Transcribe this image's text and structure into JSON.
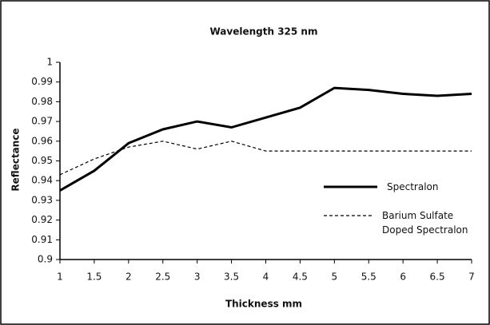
{
  "chart_data": {
    "type": "line",
    "title": "Wavelength 325 nm",
    "x_label": "Thickness mm",
    "y_label": "Reflectance",
    "x": [
      1,
      1.5,
      2,
      2.5,
      3,
      3.5,
      4,
      4.5,
      5,
      5.5,
      6,
      6.5,
      7
    ],
    "series": [
      {
        "name": "Spectralon",
        "color": "#000000",
        "style": "solid",
        "values": [
          0.935,
          0.945,
          0.959,
          0.966,
          0.97,
          0.967,
          0.972,
          0.977,
          0.987,
          0.986,
          0.984,
          0.983,
          0.984
        ]
      },
      {
        "name": "Barium Sulfate Doped Spectralon",
        "color": "#000000",
        "style": "dashed",
        "values": [
          0.943,
          0.951,
          0.957,
          0.96,
          0.956,
          0.96,
          0.955,
          0.955,
          0.955,
          0.955,
          0.955,
          0.955,
          0.955
        ]
      }
    ],
    "xlim": [
      1,
      7
    ],
    "xticks": [
      1,
      1.5,
      2,
      2.5,
      3,
      3.5,
      4,
      4.5,
      5,
      5.5,
      6,
      6.5,
      7
    ],
    "ylim": [
      0.9,
      1
    ],
    "yticks": [
      0.9,
      0.91,
      0.92,
      0.93,
      0.94,
      0.95,
      0.96,
      0.97,
      0.98,
      0.99,
      1
    ],
    "grid": false
  }
}
